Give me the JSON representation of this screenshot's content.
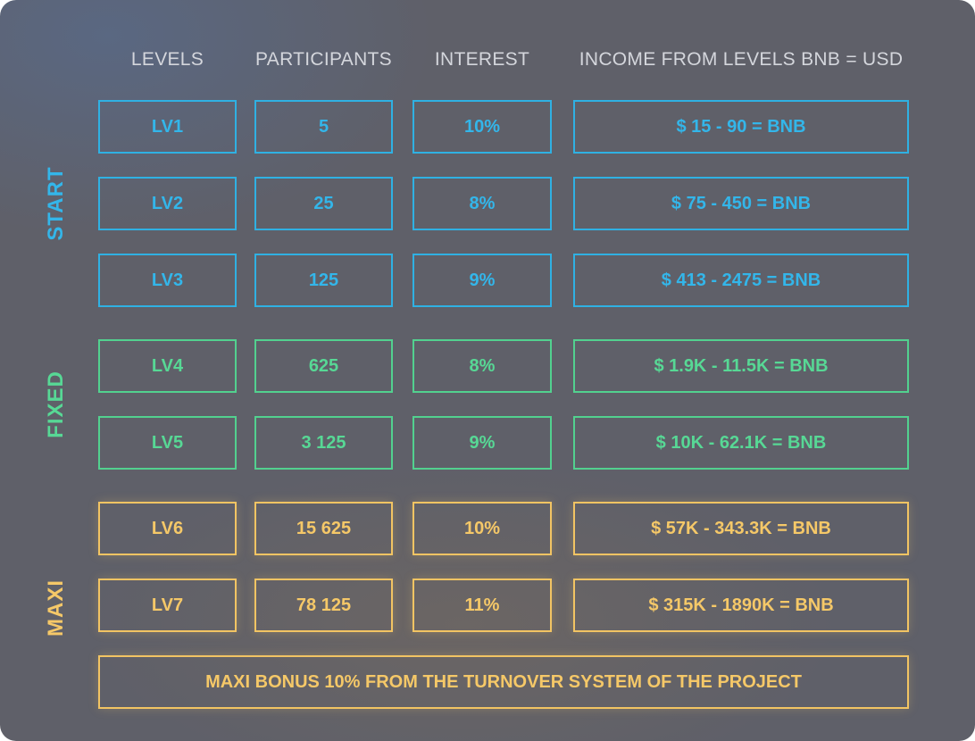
{
  "headers": {
    "levels": "LEVELS",
    "participants": "PARTICIPANTS",
    "interest": "INTEREST",
    "income": "INCOME FROM LEVELS BNB = USD"
  },
  "groups": {
    "start": "START",
    "fixed": "FIXED",
    "maxi": "MAXI"
  },
  "rows": [
    {
      "level": "LV1",
      "participants": "5",
      "interest": "10%",
      "income": "$ 15 - 90 = BNB"
    },
    {
      "level": "LV2",
      "participants": "25",
      "interest": "8%",
      "income": "$ 75 - 450 = BNB"
    },
    {
      "level": "LV3",
      "participants": "125",
      "interest": "9%",
      "income": "$ 413 - 2475 = BNB"
    },
    {
      "level": "LV4",
      "participants": "625",
      "interest": "8%",
      "income": "$ 1.9K - 11.5K = BNB"
    },
    {
      "level": "LV5",
      "participants": "3 125",
      "interest": "9%",
      "income": "$ 10K - 62.1K = BNB"
    },
    {
      "level": "LV6",
      "participants": "15 625",
      "interest": "10%",
      "income": "$ 57K - 343.3K = BNB"
    },
    {
      "level": "LV7",
      "participants": "78 125",
      "interest": "11%",
      "income": "$ 315K - 1890K = BNB"
    }
  ],
  "bonus": "MAXI BONUS 10% FROM THE TURNOVER SYSTEM OF THE PROJECT",
  "colors": {
    "start": "#33b6ea",
    "fixed": "#57d895",
    "maxi": "#f5c868",
    "background": "#5f6069"
  }
}
